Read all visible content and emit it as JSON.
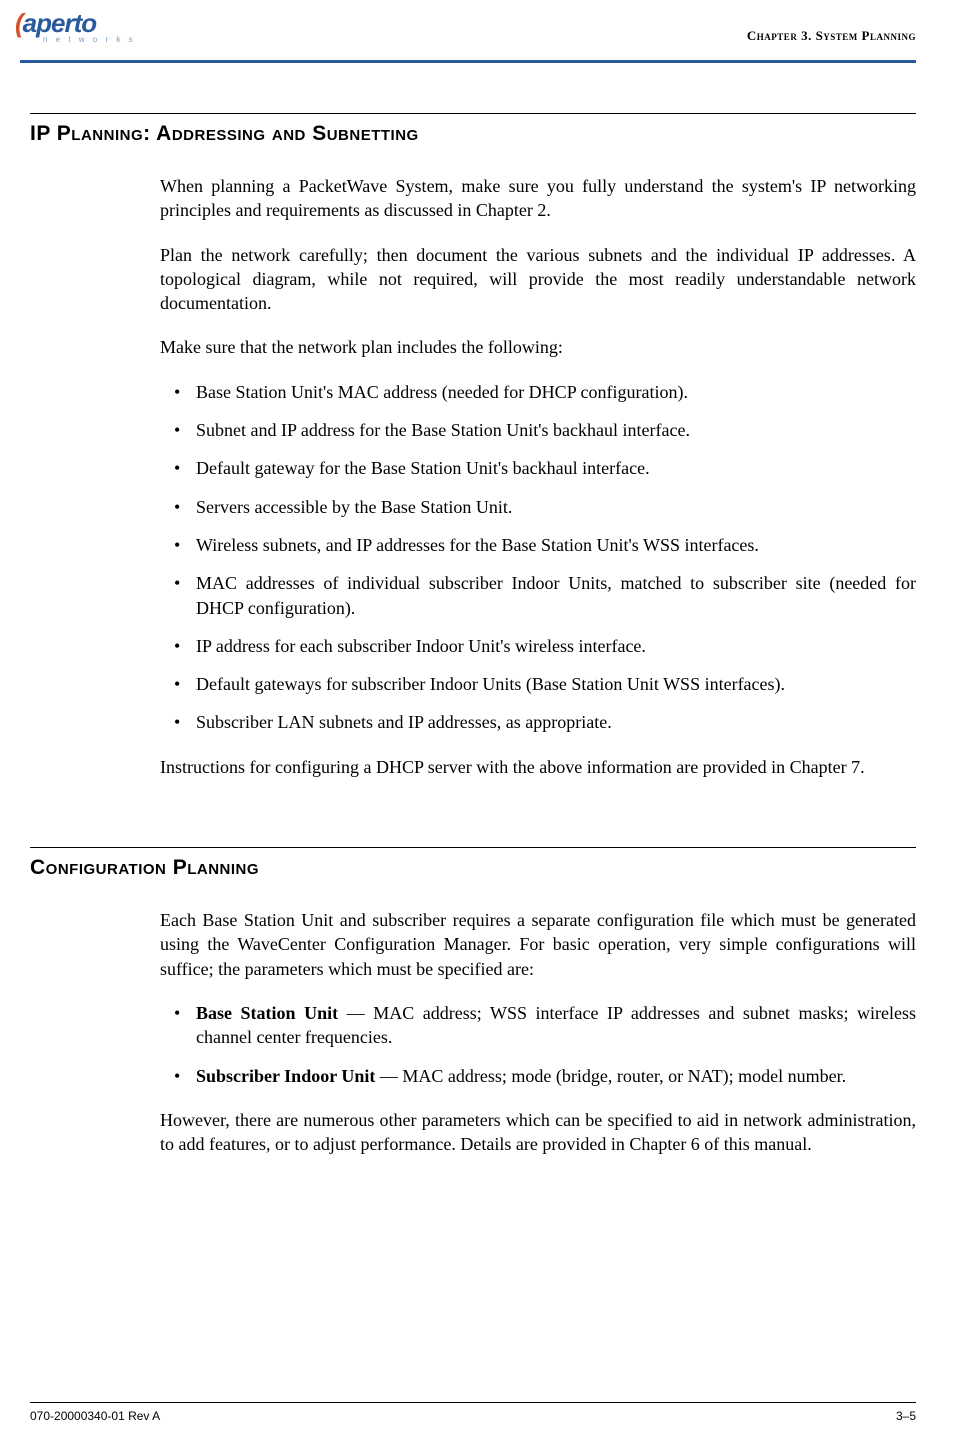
{
  "header": {
    "logo_main_swoosh": "(",
    "logo_main_text": "aperto",
    "logo_sub": "n e t w o r k s",
    "chapter_label": "Chapter 3.  System Planning"
  },
  "section1": {
    "heading": "IP Planning: Addressing and Subnetting",
    "p1": "When planning a PacketWave System, make sure you fully understand the system's IP networking principles and requirements as discussed in Chapter 2.",
    "p2": "Plan the network carefully; then document the various subnets and the individual IP addresses. A topological diagram, while not required, will provide the most readily understandable network documentation.",
    "p3": "Make sure that the network plan includes the following:",
    "bullets": [
      "Base Station Unit's MAC address (needed for DHCP configuration).",
      "Subnet and IP address for the Base Station Unit's backhaul interface.",
      "Default gateway for the Base Station Unit's backhaul interface.",
      "Servers accessible by the Base Station Unit.",
      "Wireless subnets, and IP addresses for the Base Station Unit's WSS interfaces.",
      "MAC addresses of individual subscriber Indoor Units, matched to subscriber site (needed for DHCP configuration).",
      "IP address for each subscriber Indoor Unit's wireless interface.",
      "Default gateways for subscriber Indoor Units (Base Station Unit WSS interfaces).",
      "Subscriber LAN subnets and IP addresses, as appropriate."
    ],
    "p4": "Instructions for configuring a DHCP server with the above information are provided in Chapter 7."
  },
  "section2": {
    "heading": "Configuration Planning",
    "p1": "Each Base Station Unit and subscriber requires a separate configuration file which must be generated using the WaveCenter Configuration Manager. For basic operation, very simple configurations will suffice; the parameters which must be specified are:",
    "bullets": [
      {
        "bold": "Base Station Unit",
        "rest": " — MAC address; WSS interface IP addresses and subnet masks; wireless channel center frequencies."
      },
      {
        "bold": "Subscriber Indoor Unit",
        "rest": " — MAC address; mode (bridge, router, or NAT); model number."
      }
    ],
    "p2": "However, there are numerous other parameters which can be specified to aid in network administration, to add features, or to adjust performance. Details are provided in Chapter 6 of this manual."
  },
  "footer": {
    "doc_id": "070-20000340-01 Rev A",
    "page": "3–5"
  }
}
